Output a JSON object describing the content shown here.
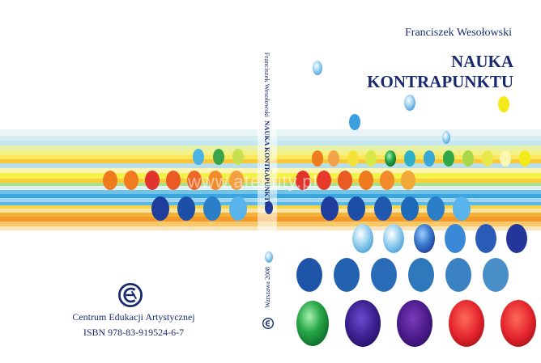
{
  "author": "Franciszek Wesołowski",
  "title_line1": "NAUKA",
  "title_line2": "KONTRAPUNKTU",
  "spine_author": "Franciszek Wesołowski",
  "spine_title": "NAUKA KONTRAPUNKTU",
  "spine_place_year": "Warszawa 2008",
  "publisher": "Centrum Edukacji Artystycznej",
  "isbn": "ISBN 978-83-919524-6-7",
  "watermark": "www.atenuty.pl",
  "logo_icon": "cea-logo-icon",
  "colors": {
    "text": "#1a2b6d",
    "blue": "#1f55a8",
    "orange": "#f07a1e",
    "red": "#e2342c",
    "yellow": "#f4ea1a",
    "green": "#21a24a",
    "purple": "#3a1e8c"
  }
}
